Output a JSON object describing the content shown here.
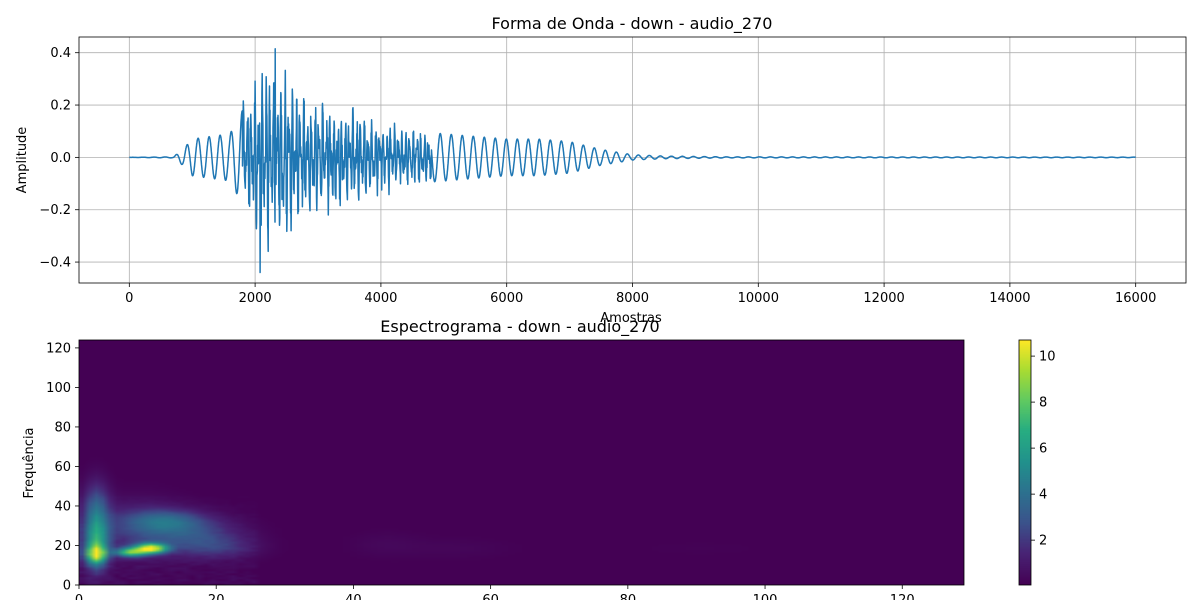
{
  "chart_data": [
    {
      "type": "line",
      "title": "Forma de Onda - down - audio_270",
      "xlabel": "Amostras",
      "ylabel": "Amplitude",
      "xlim": [
        -800,
        16800
      ],
      "ylim": [
        -0.48,
        0.46
      ],
      "xticks": [
        0,
        2000,
        4000,
        6000,
        8000,
        10000,
        12000,
        14000,
        16000
      ],
      "xtick_labels": [
        "0",
        "2000",
        "4000",
        "6000",
        "8000",
        "10000",
        "12000",
        "14000",
        "16000"
      ],
      "yticks": [
        -0.4,
        -0.2,
        0.0,
        0.2,
        0.4
      ],
      "ytick_labels": [
        "−0.4",
        "−0.2",
        "0.0",
        "0.2",
        "0.4"
      ],
      "grid": true,
      "color": "#1f77b4",
      "n_samples": 16000,
      "envelope": [
        [
          0,
          0
        ],
        [
          700,
          0.002
        ],
        [
          850,
          0.03
        ],
        [
          1000,
          0.07
        ],
        [
          1300,
          0.08
        ],
        [
          1600,
          0.09
        ],
        [
          1800,
          0.18
        ],
        [
          1950,
          0.3
        ],
        [
          2100,
          0.33
        ],
        [
          2300,
          0.38
        ],
        [
          2500,
          0.3
        ],
        [
          2700,
          0.22
        ],
        [
          3000,
          0.2
        ],
        [
          3500,
          0.17
        ],
        [
          4000,
          0.13
        ],
        [
          4500,
          0.1
        ],
        [
          5000,
          0.09
        ],
        [
          5500,
          0.08
        ],
        [
          6000,
          0.07
        ],
        [
          6500,
          0.07
        ],
        [
          7000,
          0.06
        ],
        [
          7500,
          0.03
        ],
        [
          8000,
          0.01
        ],
        [
          8500,
          0.005
        ],
        [
          9500,
          0.002
        ],
        [
          16000,
          0.001
        ]
      ],
      "peaks": {
        "max": 0.415,
        "max_at": 2320,
        "min": -0.44,
        "min_at": 2080
      }
    },
    {
      "type": "heatmap",
      "title": "Espectrograma - down - audio_270",
      "xlabel": "",
      "ylabel": "Frequência",
      "xlim": [
        0,
        129
      ],
      "ylim": [
        0,
        124
      ],
      "xticks": [
        0,
        20,
        40,
        60,
        80,
        100,
        120
      ],
      "xtick_labels": [
        "0",
        "20",
        "40",
        "60",
        "80",
        "100",
        "120"
      ],
      "yticks": [
        0,
        20,
        40,
        60,
        80,
        100,
        120
      ],
      "ytick_labels": [
        "0",
        "20",
        "40",
        "60",
        "80",
        "100",
        "120"
      ],
      "colormap": "viridis",
      "colorbar": {
        "range": [
          0.05,
          10.7
        ],
        "ticks": [
          2,
          4,
          6,
          8,
          10
        ],
        "tick_labels": [
          "2",
          "4",
          "6",
          "8",
          "10"
        ]
      },
      "energy_regions": [
        {
          "x": 2,
          "y": 20,
          "sx": 1.2,
          "sy": 9,
          "value": 5.5
        },
        {
          "x": 2,
          "y": 38,
          "sx": 1.3,
          "sy": 10,
          "value": 3.0
        },
        {
          "x": 2,
          "y": 15,
          "sx": 1.0,
          "sy": 3,
          "value": 6.5
        },
        {
          "x": 10,
          "y": 18,
          "sx": 1.6,
          "sy": 1.8,
          "value": 9.5
        },
        {
          "x": 7,
          "y": 16,
          "sx": 1.5,
          "sy": 1.6,
          "value": 7.0
        },
        {
          "x": 12,
          "y": 32,
          "sx": 4,
          "sy": 4,
          "value": 2.5
        },
        {
          "x": 16,
          "y": 25,
          "sx": 5,
          "sy": 6,
          "value": 2.2
        },
        {
          "x": 8,
          "y": 28,
          "sx": 5,
          "sy": 10,
          "value": 1.6
        },
        {
          "x": 20,
          "y": 18,
          "sx": 4,
          "sy": 4,
          "value": 1.3
        },
        {
          "x": 44,
          "y": 20,
          "sx": 4,
          "sy": 5,
          "value": 0.3
        },
        {
          "x": 55,
          "y": 18,
          "sx": 6,
          "sy": 4,
          "value": 0.25
        },
        {
          "x": 90,
          "y": 18,
          "sx": 8,
          "sy": 3,
          "value": 0.12
        }
      ]
    }
  ]
}
